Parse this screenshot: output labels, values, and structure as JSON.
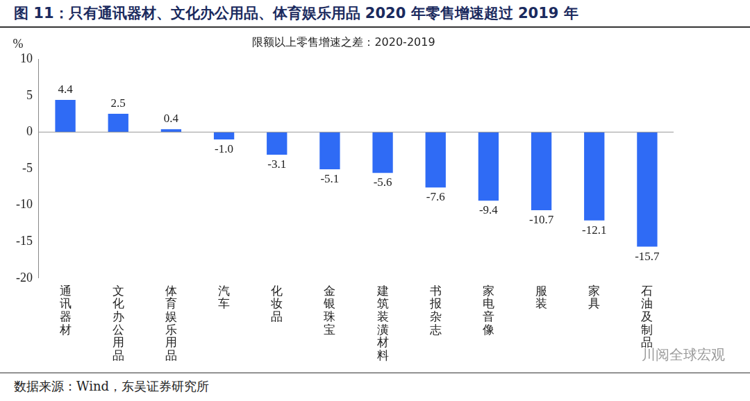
{
  "chart_data": {
    "type": "bar",
    "title": "图 11：只有通讯器材、文化办公用品、体育娱乐用品 2020 年零售增速超过 2019 年",
    "subtitle": "限额以上零售增速之差：2020-2019",
    "y_label": "%",
    "source": "数据来源：Wind，东吴证券研究所",
    "watermark": "川阅全球宏观",
    "categories": [
      "通讯器材",
      "文化办公用品",
      "体育娱乐用品",
      "汽车",
      "化妆品",
      "金银珠宝",
      "建筑装潢材料",
      "书报杂志",
      "家电音像",
      "服装",
      "家具",
      "石油及制品"
    ],
    "values": [
      4.4,
      2.5,
      0.4,
      -1.0,
      -3.1,
      -5.1,
      -5.6,
      -7.6,
      -9.4,
      -10.7,
      -12.1,
      -15.7
    ],
    "value_labels": [
      "4.4",
      "2.5",
      "0.4",
      "-1.0",
      "-3.1",
      "-5.1",
      "-5.6",
      "-7.6",
      "-9.4",
      "-10.7",
      "-12.1",
      "-15.7"
    ],
    "color": "#2f6bf5",
    "ylim": [
      -20,
      10
    ],
    "yticks": [
      -20,
      -15,
      -10,
      -5,
      0,
      5,
      10
    ],
    "grid": false,
    "data_labels": true
  }
}
